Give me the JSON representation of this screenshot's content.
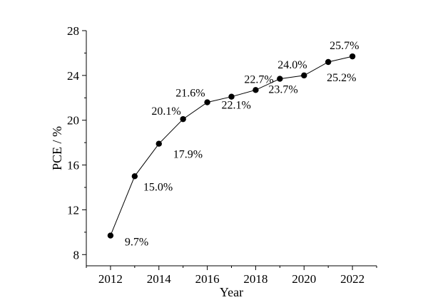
{
  "chart_data": {
    "type": "line",
    "title": "",
    "xlabel": "Year",
    "ylabel": "PCE / %",
    "xlim": [
      2011,
      2023
    ],
    "ylim": [
      7,
      28
    ],
    "x_ticks": [
      2012,
      2014,
      2016,
      2018,
      2020,
      2022
    ],
    "y_ticks": [
      8,
      12,
      16,
      20,
      24,
      28
    ],
    "grid": false,
    "legend": "none",
    "series": [
      {
        "color": "#000000",
        "points": [
          {
            "x": 2012,
            "y": 9.7,
            "label": "9.7%"
          },
          {
            "x": 2013,
            "y": 15.0,
            "label": "15.0%"
          },
          {
            "x": 2014,
            "y": 17.9,
            "label": "17.9%"
          },
          {
            "x": 2015,
            "y": 20.1,
            "label": "20.1%"
          },
          {
            "x": 2016,
            "y": 21.6,
            "label": "21.6%"
          },
          {
            "x": 2017,
            "y": 22.1,
            "label": "22.1%"
          },
          {
            "x": 2018,
            "y": 22.7,
            "label": "22.7%"
          },
          {
            "x": 2019,
            "y": 23.7,
            "label": "23.7%"
          },
          {
            "x": 2020,
            "y": 24.0,
            "label": "24.0%"
          },
          {
            "x": 2021,
            "y": 25.2,
            "label": "25.2%"
          },
          {
            "x": 2022,
            "y": 25.7,
            "label": "25.7%"
          }
        ]
      }
    ]
  }
}
